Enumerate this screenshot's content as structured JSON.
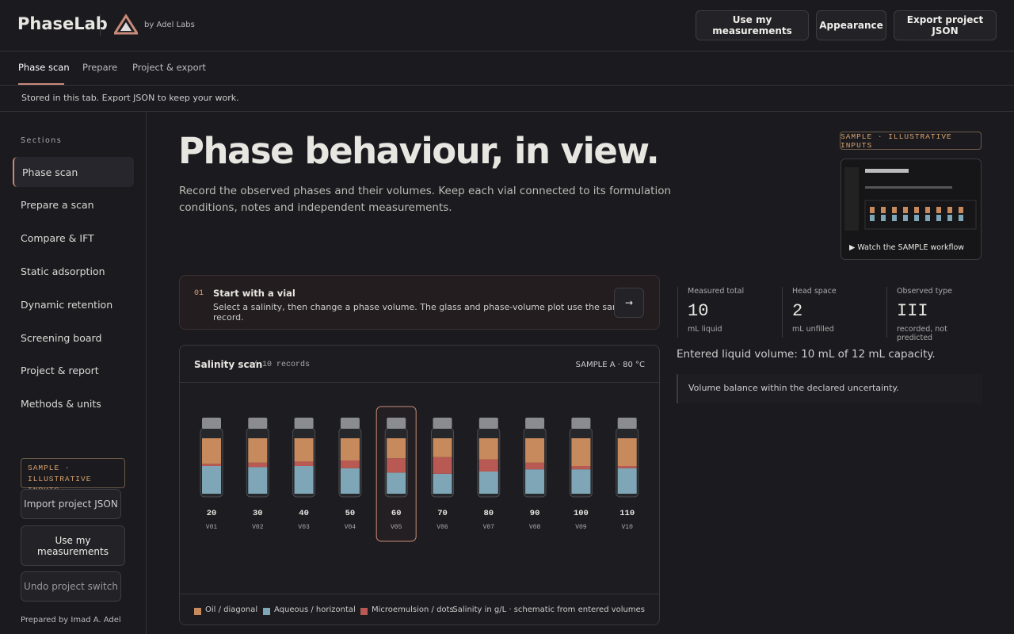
{
  "header": {
    "brand": "PhaseLab",
    "byline": "by Adel Labs",
    "buttons": [
      "Use my measurements",
      "Appearance",
      "Export project JSON"
    ]
  },
  "tabs": {
    "items": [
      "Phase scan",
      "Prepare",
      "Project & export"
    ],
    "active": 0
  },
  "notice": "Stored in this tab. Export JSON to keep your work.",
  "sidebar": {
    "heading": "Sections",
    "items": [
      "Phase scan",
      "Prepare a scan",
      "Compare & IFT",
      "Static adsorption",
      "Dynamic retention",
      "Screening board",
      "Project & report",
      "Methods & units"
    ],
    "active": 0,
    "badge": "SAMPLE · ILLUSTRATIVE INPUTS",
    "buttons": [
      "Import project JSON",
      "Use my measurements",
      "Undo project switch"
    ],
    "credit": "Prepared by Imad A. Adel"
  },
  "hero": {
    "title": "Phase behaviour, in view.",
    "text": "Record the observed phases and their volumes. Keep each vial connected to its formulation conditions, notes and independent measurements.",
    "badge": "SAMPLE · ILLUSTRATIVE INPUTS",
    "video_caption": "▶ Watch the SAMPLE workflow"
  },
  "step": {
    "number": "01",
    "title": "Start with a vial",
    "text": "Select a salinity, then change a phase volume. The glass and phase-volume plot use the same record.",
    "button": "→"
  },
  "scan": {
    "title": "Salinity scan",
    "count": "/ 10 records",
    "sample": "SAMPLE A · 80 °C",
    "selected": 4,
    "vials": [
      {
        "salinity": 20,
        "id": "V01",
        "oil": 4.6,
        "microemulsion": 0.4,
        "aqueous": 5.0
      },
      {
        "salinity": 30,
        "id": "V02",
        "oil": 4.4,
        "microemulsion": 0.8,
        "aqueous": 4.8
      },
      {
        "salinity": 40,
        "id": "V03",
        "oil": 4.2,
        "microemulsion": 0.8,
        "aqueous": 5.0
      },
      {
        "salinity": 50,
        "id": "V04",
        "oil": 4.0,
        "microemulsion": 1.4,
        "aqueous": 4.6
      },
      {
        "salinity": 60,
        "id": "V05",
        "oil": 3.6,
        "microemulsion": 2.6,
        "aqueous": 3.8
      },
      {
        "salinity": 70,
        "id": "V06",
        "oil": 3.4,
        "microemulsion": 3.0,
        "aqueous": 3.6
      },
      {
        "salinity": 80,
        "id": "V07",
        "oil": 3.8,
        "microemulsion": 2.2,
        "aqueous": 4.0
      },
      {
        "salinity": 90,
        "id": "V08",
        "oil": 4.4,
        "microemulsion": 1.2,
        "aqueous": 4.4
      },
      {
        "salinity": 100,
        "id": "V09",
        "oil": 5.0,
        "microemulsion": 0.6,
        "aqueous": 4.4
      },
      {
        "salinity": 110,
        "id": "V10",
        "oil": 5.0,
        "microemulsion": 0.4,
        "aqueous": 4.6
      }
    ],
    "legend": [
      {
        "label": "Oil / diagonal",
        "color": "#c78a5c"
      },
      {
        "label": "Aqueous / horizontal",
        "color": "#7ea6b6"
      },
      {
        "label": "Microemulsion / dots",
        "color": "#b85a53"
      }
    ],
    "note": "Salinity in g/L · schematic from entered volumes"
  },
  "stats": [
    {
      "label": "Measured total",
      "value": 10,
      "unit": "mL liquid"
    },
    {
      "label": "Head space",
      "value": 2,
      "unit": "mL unfilled"
    },
    {
      "label": "Observed type",
      "value": "III",
      "unit": "recorded, not predicted"
    }
  ],
  "summary": "Entered liquid volume: 10 mL of 12 mL capacity.",
  "status": "Volume balance within the declared uncertainty."
}
